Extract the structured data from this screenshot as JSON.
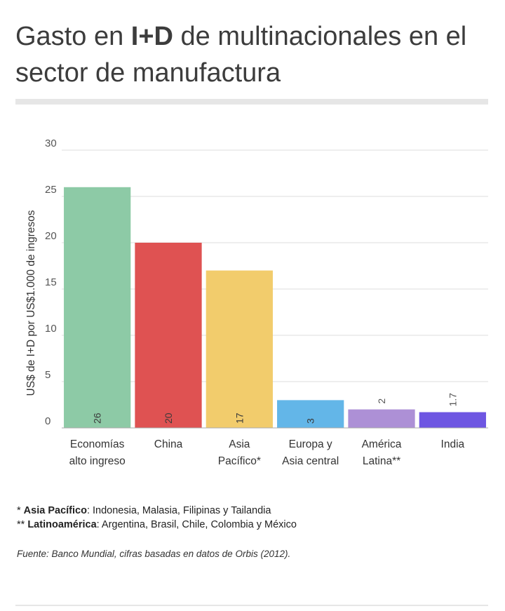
{
  "title": {
    "before": "Gasto en ",
    "bold": "I+D",
    "after": " de multinacionales en el sector de manufactura"
  },
  "chart_data": {
    "type": "bar",
    "ylabel": "US$ de I+D por US$1.000 de ingresos",
    "xlabel": "",
    "ylim": [
      0,
      30
    ],
    "yticks": [
      0,
      5,
      10,
      15,
      20,
      25,
      30
    ],
    "grid": true,
    "categories": [
      [
        "Economías",
        "alto ingreso"
      ],
      [
        "China"
      ],
      [
        "Asia",
        "Pacífico*"
      ],
      [
        "Europa y",
        "Asia central"
      ],
      [
        "América",
        "Latina**"
      ],
      [
        "India"
      ]
    ],
    "values": [
      26,
      20,
      17,
      3,
      2,
      1.7
    ],
    "value_labels": [
      "26",
      "20",
      "17",
      "3",
      "2",
      "1.7"
    ],
    "colors": [
      "#8dcaa6",
      "#df5252",
      "#f2cc6c",
      "#63b6e8",
      "#ad90d6",
      "#6e56e2"
    ]
  },
  "notes": [
    {
      "prefix": "* ",
      "bold": "Asia Pacífico",
      "text": ": Indonesia, Malasia, Filipinas y Tailandia"
    },
    {
      "prefix": "** ",
      "bold": "Latinoamérica",
      "text": ": Argentina, Brasil, Chile, Colombia y México"
    }
  ],
  "source": "Fuente: Banco Mundial, cifras basadas en datos de Orbis (2012)."
}
